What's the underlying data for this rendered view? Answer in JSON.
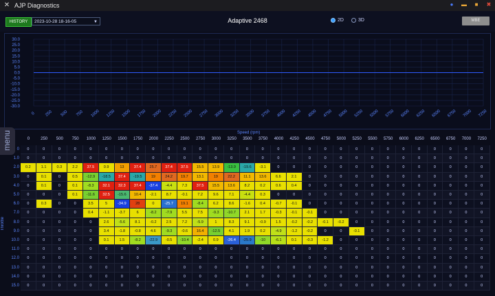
{
  "titlebar": {
    "title": "AJP Diagnostics",
    "icons": [
      "app-logo-icon",
      "info-icon",
      "minimize-icon",
      "maximize-icon",
      "close-icon"
    ],
    "colors": {
      "info": "#4a7cff",
      "minimize": "#e9a637",
      "maximize": "#e9a637",
      "close": "#e04a3a"
    }
  },
  "toolbar": {
    "history_label": "HISTORY",
    "date_value": "2023-10-28 18-16-05",
    "map_name": "Adaptive 2468",
    "view_2d": "2D",
    "view_3d": "3D",
    "view_selected": "2D",
    "mbe_label": "MBE"
  },
  "side_menu": {
    "label": "menu"
  },
  "chart_data": {
    "type": "line",
    "title": "",
    "xlabel": "Speed (rpm)",
    "ylabel": "",
    "x_ticks": [
      "0",
      "250",
      "500",
      "750",
      "1000",
      "1250",
      "1500",
      "1750",
      "2000",
      "2250",
      "2500",
      "2750",
      "3000",
      "3250",
      "3500",
      "3750",
      "4000",
      "4250",
      "4500",
      "4750",
      "5000",
      "5250",
      "5500",
      "5750",
      "6000",
      "6250",
      "6500",
      "6750",
      "7000",
      "7250"
    ],
    "y_ticks": [
      "30.0",
      "25.0",
      "20.0",
      "15.0",
      "10.0",
      "5.0",
      "0.0",
      "-5.0",
      "-10.0",
      "-15.0",
      "-20.0",
      "-25.0",
      "-30.0"
    ],
    "ylim": [
      -30,
      30
    ],
    "xlim": [
      0,
      7250
    ],
    "grid": true,
    "series": [
      {
        "x": [
          0,
          7250
        ],
        "y": [
          0,
          0
        ],
        "color": "#2f5cff"
      }
    ]
  },
  "table": {
    "x_axis_title": "Speed (rpm)",
    "y_axis_title": "Throttle",
    "columns": [
      "0",
      "250",
      "500",
      "750",
      "1000",
      "1250",
      "1500",
      "1750",
      "2000",
      "2250",
      "2500",
      "2750",
      "3000",
      "3250",
      "3500",
      "3750",
      "4000",
      "4250",
      "4500",
      "4750",
      "5000",
      "5250",
      "5500",
      "5750",
      "6000",
      "6250",
      "6500",
      "6750",
      "7000",
      "7250"
    ],
    "rows": [
      {
        "label": "0",
        "cells": [
          "0",
          "0",
          "0",
          "0",
          "0",
          "0",
          "0",
          "0",
          "0",
          "0",
          "0",
          "0",
          "0",
          "0",
          "0",
          "0",
          "0",
          "0",
          "0",
          "0",
          "0",
          "0",
          "0",
          "0",
          "0",
          "0",
          "0",
          "0",
          "0",
          "0"
        ],
        "hl": []
      },
      {
        "label": "1.0",
        "cells": [
          "0",
          "0",
          "0",
          "0",
          "0",
          "0",
          "0",
          "0",
          "0",
          "0",
          "0",
          "0",
          "0",
          "0",
          "0",
          "0",
          "0",
          "0",
          "0",
          "0",
          "0",
          "0",
          "0",
          "0",
          "0",
          "0",
          "0",
          "0",
          "0",
          "0"
        ],
        "hl": []
      },
      {
        "label": "2.0",
        "cells": [
          "0.2",
          "1.1",
          "0.3",
          "2.2",
          "37.5",
          "0.9",
          "13",
          "37.4",
          "25.7",
          "37.4",
          "37.5",
          "15.5",
          "13.9",
          "-13.9",
          "-19.6",
          "-3.1",
          "0",
          "0",
          "0",
          "0",
          "0",
          "0",
          "0",
          "0",
          "0",
          "0",
          "0",
          "0",
          "0",
          "0"
        ],
        "hl": [
          "#e8e000",
          "#e8e000",
          "#e8e000",
          "#e8e000",
          "#e02010",
          "#e8e000",
          "#f2a000",
          "#e02010",
          "#e06820",
          "#e02010",
          "#e02010",
          "#f2b800",
          "#f2b800",
          "#3ac040",
          "#2aa8a8",
          "#e8e000"
        ]
      },
      {
        "label": "3.0",
        "cells": [
          "0",
          "0.1",
          "0",
          "0.5",
          "-12.9",
          "-18.5",
          "37.4",
          "-19.5",
          "19",
          "24.2",
          "19.7",
          "13.1",
          "19",
          "22.2",
          "11.1",
          "13.6",
          "6.6",
          "2.1",
          "0",
          "0",
          "0",
          "0",
          "0",
          "0",
          "0",
          "0",
          "0",
          "0",
          "0",
          "0"
        ],
        "hl": [
          "",
          "#e8e000",
          "",
          "#e8e000",
          "#78d030",
          "#2aa8a8",
          "#e02010",
          "#2aa8a8",
          "#f28000",
          "#e06820",
          "#f28000",
          "#f2b800",
          "#f28000",
          "#e06820",
          "#f2b800",
          "#f2b800",
          "#e8e000",
          "#e8e000"
        ]
      },
      {
        "label": "4.0",
        "cells": [
          "0",
          "0.1",
          "0",
          "0.1",
          "-8.3",
          "32.1",
          "32.3",
          "37.4",
          "-37.4",
          "-4.4",
          "7.3",
          "37.5",
          "15.5",
          "13.6",
          "8.2",
          "0.2",
          "0.6",
          "0.4",
          "0",
          "0",
          "0",
          "0",
          "0",
          "0",
          "0",
          "0",
          "0",
          "0",
          "0",
          "0"
        ],
        "hl": [
          "",
          "#e8e000",
          "",
          "#e8e000",
          "#a0dc20",
          "#e02010",
          "#e02010",
          "#e02010",
          "#1840e0",
          "#c8e010",
          "#e8e000",
          "#e02010",
          "#f2b800",
          "#f2b800",
          "#e8e000",
          "#e8e000",
          "#e8e000",
          "#e8e000"
        ]
      },
      {
        "label": "5.0",
        "cells": [
          "0",
          "0",
          "0",
          "0.1",
          "-11.6",
          "32.5",
          "-15.6",
          "10.4",
          "-2.1",
          "8.7",
          "-0.1",
          "7.2",
          "9.6",
          "7.1",
          "-4.4",
          "0.3",
          "0",
          "0",
          "0",
          "0",
          "0",
          "0",
          "0",
          "0",
          "0",
          "0",
          "0",
          "0",
          "0",
          "0"
        ],
        "hl": [
          "",
          "",
          "",
          "#e8e000",
          "#78d030",
          "#e02010",
          "#4ab870",
          "#f2b800",
          "#e8e000",
          "#e8e000",
          "#e8e000",
          "#e8e000",
          "#e8e000",
          "#e8e000",
          "#c8e010",
          "#e8e000"
        ]
      },
      {
        "label": "6.0",
        "cells": [
          "0",
          "0.3",
          "0",
          "0",
          "3.5",
          "5",
          "-34.9",
          "28",
          "0",
          "-25.7",
          "19.1",
          "-8.4",
          "6.2",
          "8.6",
          "-1.6",
          "0.4",
          "-0.7",
          "-0.1",
          "0",
          "0",
          "0",
          "0",
          "0",
          "0",
          "0",
          "0",
          "0",
          "0",
          "0",
          "0"
        ],
        "hl": [
          "",
          "#e8e000",
          "",
          "",
          "#e8e000",
          "#e8e000",
          "#1840e0",
          "#e04010",
          "#e8e000",
          "#2a70d0",
          "#f28000",
          "#a0dc20",
          "#e8e000",
          "#e8e000",
          "#e8e000",
          "#e8e000",
          "#e8e000",
          "#e8e000"
        ]
      },
      {
        "label": "7.0",
        "cells": [
          "0",
          "0",
          "0",
          "0",
          "0.4",
          "-1.1",
          "-3.7",
          "6",
          "-8.2",
          "-7.9",
          "5.5",
          "7.5",
          "-9.3",
          "-10.7",
          "2.1",
          "1.7",
          "-0.3",
          "-0.1",
          "-0.1",
          "0",
          "0",
          "0",
          "0",
          "0",
          "0",
          "0",
          "0",
          "0",
          "0",
          "0"
        ],
        "hl": [
          "",
          "",
          "",
          "",
          "#e8e000",
          "#e8e000",
          "#e8e000",
          "#e8e000",
          "#a0dc20",
          "#a0dc20",
          "#e8e000",
          "#e8e000",
          "#a0dc20",
          "#90d828",
          "#e8e000",
          "#e8e000",
          "#e8e000",
          "#e8e000",
          "#e8e000"
        ]
      },
      {
        "label": "8.0",
        "cells": [
          "0",
          "0",
          "0",
          "0",
          "0",
          "2.6",
          "-5.6",
          "8.1",
          "-0.2",
          "2.5",
          "7.2",
          "-5.9",
          "1",
          "8.3",
          "9.1",
          "-0.9",
          "1.5",
          "-0.2",
          "-0.2",
          "-0.1",
          "-0.2",
          "0",
          "0",
          "0",
          "0",
          "0",
          "0",
          "0",
          "0",
          "0"
        ],
        "hl": [
          "",
          "",
          "",
          "",
          "",
          "#e8e000",
          "#c0e018",
          "#e8e000",
          "#e8e000",
          "#e8e000",
          "#e8e000",
          "#c0e018",
          "#e8e000",
          "#e8e000",
          "#e8e000",
          "#e8e000",
          "#e8e000",
          "#e8e000",
          "#e8e000",
          "#e8e000",
          "#e8e000"
        ]
      },
      {
        "label": "9.0",
        "cells": [
          "0",
          "0",
          "0",
          "0",
          "0",
          "3.4",
          "-1.8",
          "-0.8",
          "4.6",
          "-9.3",
          "-0.6",
          "16.4",
          "-12.5",
          "4.1",
          "1.9",
          "0.2",
          "-4.9",
          "-1.2",
          "-0.2",
          "0",
          "0",
          "-0.1",
          "0",
          "0",
          "0",
          "0",
          "0",
          "0",
          "0",
          "0"
        ],
        "hl": [
          "",
          "",
          "",
          "",
          "",
          "#e8e000",
          "#e8e000",
          "#e8e000",
          "#e8e000",
          "#a0dc20",
          "#e8e000",
          "#f2b000",
          "#78d030",
          "#e8e000",
          "#e8e000",
          "#e8e000",
          "#c0e018",
          "#e8e000",
          "#e8e000",
          "",
          "",
          "#e8e000"
        ]
      },
      {
        "label": "10.0",
        "cells": [
          "0",
          "0",
          "0",
          "0",
          "0",
          "0.1",
          "1.5",
          "-8.2",
          "-22.9",
          "-0.5",
          "-10.4",
          "-2.4",
          "0.9",
          "-26.4",
          "-25.9",
          "-10",
          "-6.1",
          "0.1",
          "-0.3",
          "-1.2",
          "0",
          "0",
          "0",
          "0",
          "0",
          "0",
          "0",
          "0",
          "0",
          "0"
        ],
        "hl": [
          "",
          "",
          "",
          "",
          "",
          "#e8e000",
          "#e8e000",
          "#a0dc20",
          "#3a98c8",
          "#e8e000",
          "#90d828",
          "#e8e000",
          "#e8e000",
          "#2a60d8",
          "#2a78c8",
          "#90d828",
          "#b8e018",
          "#e8e000",
          "#e8e000",
          "#e8e000"
        ]
      },
      {
        "label": "11.0",
        "cells": [
          "0",
          "0",
          "0",
          "0",
          "0",
          "0",
          "0",
          "0",
          "0",
          "0",
          "0",
          "0",
          "0",
          "0",
          "0",
          "0",
          "0",
          "0",
          "0",
          "0",
          "0",
          "0",
          "0",
          "0",
          "0",
          "0",
          "0",
          "0",
          "0",
          "0"
        ],
        "hl": []
      },
      {
        "label": "12.0",
        "cells": [
          "0",
          "0",
          "0",
          "0",
          "0",
          "0",
          "0",
          "0",
          "0",
          "0",
          "0",
          "0",
          "0",
          "0",
          "0",
          "0",
          "0",
          "0",
          "0",
          "0",
          "0",
          "0",
          "0",
          "0",
          "0",
          "0",
          "0",
          "0",
          "0",
          "0"
        ],
        "hl": []
      },
      {
        "label": "13.0",
        "cells": [
          "0",
          "0",
          "0",
          "0",
          "0",
          "0",
          "0",
          "0",
          "0",
          "0",
          "0",
          "0",
          "0",
          "0",
          "0",
          "0",
          "0",
          "0",
          "0",
          "0",
          "0",
          "0",
          "0",
          "0",
          "0",
          "0",
          "0",
          "0",
          "0",
          "0"
        ],
        "hl": []
      },
      {
        "label": "14.0",
        "cells": [
          "0",
          "0",
          "0",
          "0",
          "0",
          "0",
          "0",
          "0",
          "0",
          "0",
          "0",
          "0",
          "0",
          "0",
          "0",
          "0",
          "0",
          "0",
          "0",
          "0",
          "0",
          "0",
          "0",
          "0",
          "0",
          "0",
          "0",
          "0",
          "0",
          "0"
        ],
        "hl": []
      },
      {
        "label": "15.0",
        "cells": [
          "0",
          "0",
          "0",
          "0",
          "0",
          "0",
          "0",
          "0",
          "0",
          "0",
          "0",
          "0",
          "0",
          "0",
          "0",
          "0",
          "0",
          "0",
          "0",
          "0",
          "0",
          "0",
          "0",
          "0",
          "0",
          "0",
          "0",
          "0",
          "0",
          "0"
        ],
        "hl": []
      }
    ]
  }
}
